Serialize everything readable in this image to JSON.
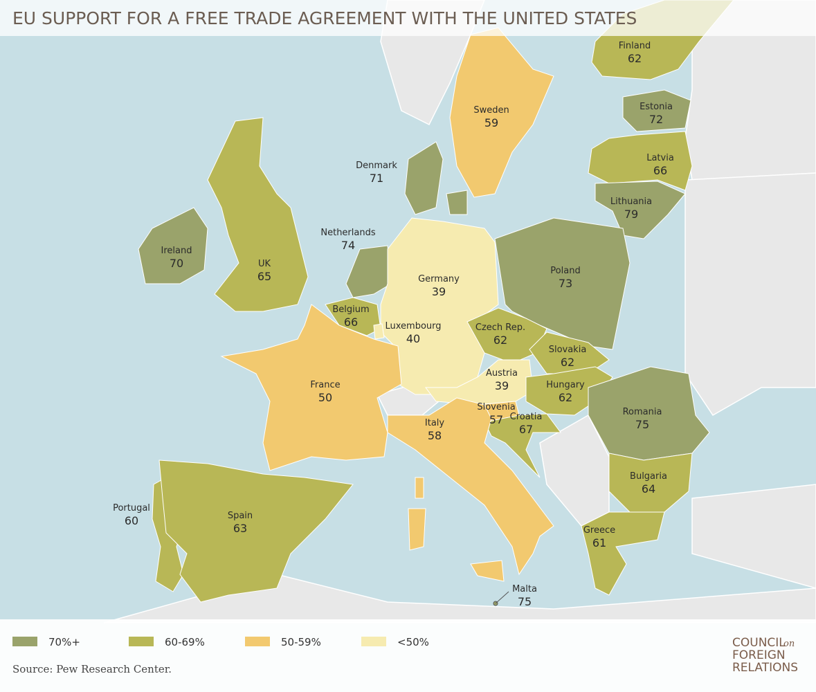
{
  "title": "EU SUPPORT FOR A FREE TRADE AGREEMENT WITH THE UNITED STATES",
  "countries": [
    {
      "name": "Finland",
      "value": 62,
      "color": "#b8b756"
    },
    {
      "name": "Sweden",
      "value": 59,
      "color": "#f2c96f"
    },
    {
      "name": "Estonia",
      "value": 72,
      "color": "#9aa36b"
    },
    {
      "name": "Latvia",
      "value": 66,
      "color": "#b8b756"
    },
    {
      "name": "Lithuania",
      "value": 79,
      "color": "#9aa36b"
    },
    {
      "name": "Denmark",
      "value": 71,
      "color": "#9aa36b"
    },
    {
      "name": "Netherlands",
      "value": 74,
      "color": "#9aa36b"
    },
    {
      "name": "Ireland",
      "value": 70,
      "color": "#9aa36b"
    },
    {
      "name": "UK",
      "value": 65,
      "color": "#b8b756"
    },
    {
      "name": "Poland",
      "value": 73,
      "color": "#9aa36b"
    },
    {
      "name": "Germany",
      "value": 39,
      "color": "#f6ebb0"
    },
    {
      "name": "Belgium",
      "value": 66,
      "color": "#b8b756"
    },
    {
      "name": "Luxembourg",
      "value": 40,
      "color": "#f6ebb0"
    },
    {
      "name": "Czech Rep.",
      "value": 62,
      "color": "#b8b756"
    },
    {
      "name": "Slovakia",
      "value": 62,
      "color": "#b8b756"
    },
    {
      "name": "Austria",
      "value": 39,
      "color": "#f6ebb0"
    },
    {
      "name": "Hungary",
      "value": 62,
      "color": "#b8b756"
    },
    {
      "name": "France",
      "value": 50,
      "color": "#f2c96f"
    },
    {
      "name": "Romania",
      "value": 75,
      "color": "#9aa36b"
    },
    {
      "name": "Slovenia",
      "value": 57,
      "color": "#f2c96f"
    },
    {
      "name": "Croatia",
      "value": 67,
      "color": "#b8b756"
    },
    {
      "name": "Italy",
      "value": 58,
      "color": "#f2c96f"
    },
    {
      "name": "Bulgaria",
      "value": 64,
      "color": "#b8b756"
    },
    {
      "name": "Portugal",
      "value": 60,
      "color": "#b8b756"
    },
    {
      "name": "Spain",
      "value": 63,
      "color": "#b8b756"
    },
    {
      "name": "Greece",
      "value": 61,
      "color": "#b8b756"
    },
    {
      "name": "Malta",
      "value": 75,
      "color": "#9aa36b"
    }
  ],
  "legend": [
    {
      "label": "70%+",
      "color": "#9aa36b"
    },
    {
      "label": "60-69%",
      "color": "#b8b756"
    },
    {
      "label": "50-59%",
      "color": "#f2c96f"
    },
    {
      "label": "<50%",
      "color": "#f6ebb0"
    }
  ],
  "source": "Source: Pew Research Center.",
  "logo": {
    "line1": "COUNCIL",
    "on": "on",
    "line2": "FOREIGN",
    "line3": "RELATIONS"
  }
}
